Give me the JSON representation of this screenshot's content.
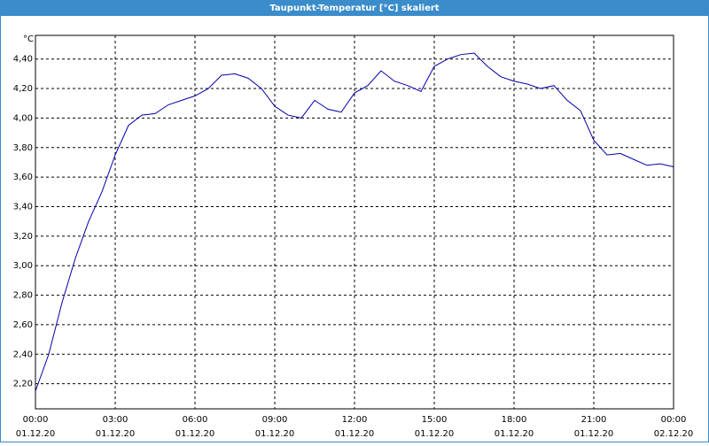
{
  "chart_data": {
    "type": "line",
    "title": "Taupunkt-Temperatur [°C] skaliert",
    "y_unit": "°C",
    "x": [
      0,
      0.5,
      1,
      1.5,
      2,
      2.5,
      3,
      3.5,
      4,
      4.5,
      5,
      5.5,
      6,
      6.5,
      7,
      7.5,
      8,
      8.5,
      9,
      9.5,
      10,
      10.5,
      11,
      11.5,
      12,
      12.5,
      13,
      13.5,
      14,
      14.5,
      15,
      15.5,
      16,
      16.5,
      17,
      17.5,
      18,
      18.5,
      19,
      19.5,
      20,
      20.5,
      21,
      21.5,
      22,
      22.5,
      23,
      23.5,
      24
    ],
    "series": [
      {
        "name": "Taupunkt-Temperatur",
        "color": "#0000a8",
        "values": [
          2.15,
          2.4,
          2.75,
          3.05,
          3.3,
          3.5,
          3.75,
          3.95,
          4.02,
          4.03,
          4.09,
          4.12,
          4.15,
          4.2,
          4.29,
          4.3,
          4.27,
          4.2,
          4.08,
          4.02,
          4.0,
          4.12,
          4.06,
          4.04,
          4.17,
          4.22,
          4.32,
          4.25,
          4.22,
          4.18,
          4.35,
          4.4,
          4.43,
          4.44,
          4.35,
          4.28,
          4.25,
          4.23,
          4.2,
          4.22,
          4.12,
          4.05,
          3.85,
          3.75,
          3.76,
          3.72,
          3.68,
          3.69,
          3.67
        ]
      }
    ],
    "xlim": [
      0,
      24
    ],
    "xticks": [
      {
        "value": 0,
        "label": "00:00"
      },
      {
        "value": 3,
        "label": "03:00"
      },
      {
        "value": 6,
        "label": "06:00"
      },
      {
        "value": 9,
        "label": "09:00"
      },
      {
        "value": 12,
        "label": "12:00"
      },
      {
        "value": 15,
        "label": "15:00"
      },
      {
        "value": 18,
        "label": "18:00"
      },
      {
        "value": 21,
        "label": "21:00"
      },
      {
        "value": 24,
        "label": "00:00"
      }
    ],
    "xtick_dates": [
      "01.12.20",
      "01.12.20",
      "01.12.20",
      "01.12.20",
      "01.12.20",
      "01.12.20",
      "01.12.20",
      "01.12.20",
      "02.12.20"
    ],
    "ylim": [
      2.03,
      4.56
    ],
    "yticks": [
      {
        "value": 2.2,
        "label": "2,20"
      },
      {
        "value": 2.4,
        "label": "2,40"
      },
      {
        "value": 2.6,
        "label": "2,60"
      },
      {
        "value": 2.8,
        "label": "2,80"
      },
      {
        "value": 3.0,
        "label": "3,00"
      },
      {
        "value": 3.2,
        "label": "3,20"
      },
      {
        "value": 3.4,
        "label": "3,40"
      },
      {
        "value": 3.6,
        "label": "3,60"
      },
      {
        "value": 3.8,
        "label": "3,80"
      },
      {
        "value": 4.0,
        "label": "4,00"
      },
      {
        "value": 4.2,
        "label": "4,20"
      },
      {
        "value": 4.4,
        "label": "4,40"
      }
    ],
    "grid": true
  }
}
